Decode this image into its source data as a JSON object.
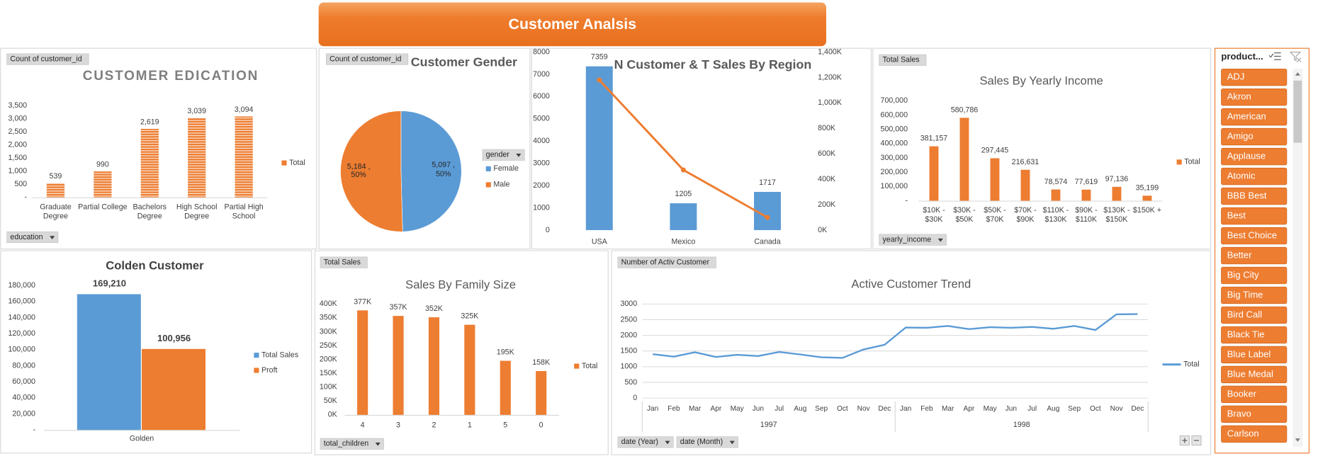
{
  "title": "Customer Analsis",
  "chart_data": [
    {
      "type": "bar",
      "title": "CUSTOMER EDICATION",
      "field_button": "Count of customer_id",
      "filter_button": "education",
      "pattern": "striped",
      "categories": [
        "Graduate Degree",
        "Partial College",
        "Bachelors Degree",
        "High School Degree",
        "Partial High School"
      ],
      "series": [
        {
          "name": "Total",
          "color": "#ed7d31",
          "values": [
            539,
            990,
            2619,
            3039,
            3094
          ],
          "value_labels": [
            "539",
            "990",
            "2,619",
            "3,039",
            "3,094"
          ]
        }
      ],
      "ylim": [
        0,
        3500
      ],
      "yticks": [
        {
          "value": 0,
          "label": "-"
        },
        500,
        {
          "value": 1000,
          "label": "1,000"
        },
        {
          "value": 1500,
          "label": "1,500"
        },
        {
          "value": 2000,
          "label": "2,000"
        },
        {
          "value": 2500,
          "label": "2,500"
        },
        {
          "value": 3000,
          "label": "3,000"
        },
        {
          "value": 3500,
          "label": "3,500"
        }
      ]
    },
    {
      "type": "pie",
      "title": "Customer Gender",
      "field_button": "Count of customer_id",
      "legend_title": "gender",
      "categories": [
        "Female",
        "Male"
      ],
      "values": [
        5097,
        5184
      ],
      "value_labels": [
        "5,097 , 50%",
        "5,184 , 50%"
      ],
      "colors": [
        "#5b9bd5",
        "#ed7d31"
      ]
    },
    {
      "type": "combo",
      "title": "N Customer & T Sales By Region",
      "categories": [
        "USA",
        "Mexico",
        "Canada"
      ],
      "series": [
        {
          "type": "bar",
          "color": "#5b9bd5",
          "values": [
            7359,
            1205,
            1717
          ]
        },
        {
          "type": "line",
          "axis": "y2",
          "color": "#ed7d31",
          "values": [
            1180000,
            473000,
            100000
          ]
        }
      ],
      "ylim": [
        0,
        8000
      ],
      "yticks": [
        0,
        1000,
        2000,
        3000,
        4000,
        5000,
        6000,
        7000,
        8000
      ],
      "y2lim": [
        0,
        1400000
      ],
      "y2ticks": [
        {
          "value": 0,
          "label": "0K"
        },
        {
          "value": 200000,
          "label": "200K"
        },
        {
          "value": 400000,
          "label": "400K"
        },
        {
          "value": 600000,
          "label": "600K"
        },
        {
          "value": 800000,
          "label": "800K"
        },
        {
          "value": 1000000,
          "label": "1,000K"
        },
        {
          "value": 1200000,
          "label": "1,200K"
        },
        {
          "value": 1400000,
          "label": "1,400K"
        }
      ]
    },
    {
      "type": "bar",
      "title": "Sales By Yearly Income",
      "field_button": "Total Sales",
      "filter_button": "yearly_income",
      "categories": [
        "$10K - $30K",
        "$30K - $50K",
        "$50K - $70K",
        "$70K - $90K",
        "$110K - $130K",
        "$90K - $110K",
        "$130K - $150K",
        "$150K +"
      ],
      "series": [
        {
          "name": "Total",
          "color": "#ed7d31",
          "values": [
            381157,
            580786,
            297445,
            216631,
            78574,
            77619,
            97136,
            35199
          ],
          "value_labels": [
            "381,157",
            "580,786",
            "297,445",
            "216,631",
            "78,574",
            "77,619",
            "97,136",
            "35,199"
          ]
        }
      ],
      "ylim": [
        0,
        700000
      ],
      "yticks": [
        {
          "value": 0,
          "label": "-"
        },
        {
          "value": 100000,
          "label": "100,000"
        },
        {
          "value": 200000,
          "label": "200,000"
        },
        {
          "value": 300000,
          "label": "300,000"
        },
        {
          "value": 400000,
          "label": "400,000"
        },
        {
          "value": 500000,
          "label": "500,000"
        },
        {
          "value": 600000,
          "label": "600,000"
        },
        {
          "value": 700000,
          "label": "700,000"
        }
      ]
    },
    {
      "type": "bar",
      "title": "Colden Customer",
      "categories": [
        "Golden"
      ],
      "series": [
        {
          "name": "Total  Sales",
          "color": "#5b9bd5",
          "values": [
            169210
          ],
          "value_labels": [
            "169,210"
          ]
        },
        {
          "name": "Proft",
          "color": "#ed7d31",
          "values": [
            100956
          ],
          "value_labels": [
            "100,956"
          ]
        }
      ],
      "ylim": [
        0,
        180000
      ],
      "yticks": [
        {
          "value": 0,
          "label": "-"
        },
        {
          "value": 20000,
          "label": "20,000"
        },
        {
          "value": 40000,
          "label": "40,000"
        },
        {
          "value": 60000,
          "label": "60,000"
        },
        {
          "value": 80000,
          "label": "80,000"
        },
        {
          "value": 100000,
          "label": "100,000"
        },
        {
          "value": 120000,
          "label": "120,000"
        },
        {
          "value": 140000,
          "label": "140,000"
        },
        {
          "value": 160000,
          "label": "160,000"
        },
        {
          "value": 180000,
          "label": "180,000"
        }
      ]
    },
    {
      "type": "bar",
      "title": "Sales By Family Size",
      "field_button": "Total Sales",
      "filter_button": "total_children",
      "categories": [
        "4",
        "3",
        "2",
        "1",
        "5",
        "0"
      ],
      "series": [
        {
          "name": "Total",
          "color": "#ed7d31",
          "values": [
            377000,
            357000,
            352000,
            325000,
            195000,
            158000
          ],
          "value_labels": [
            "377K",
            "357K",
            "352K",
            "325K",
            "195K",
            "158K"
          ]
        }
      ],
      "ylim": [
        0,
        400000
      ],
      "yticks": [
        {
          "value": 0,
          "label": "0K"
        },
        {
          "value": 50000,
          "label": "50K"
        },
        {
          "value": 100000,
          "label": "100K"
        },
        {
          "value": 150000,
          "label": "150K"
        },
        {
          "value": 200000,
          "label": "200K"
        },
        {
          "value": 250000,
          "label": "250K"
        },
        {
          "value": 300000,
          "label": "300K"
        },
        {
          "value": 350000,
          "label": "350K"
        },
        {
          "value": 400000,
          "label": "400K"
        }
      ]
    },
    {
      "type": "line",
      "title": "Active Customer Trend",
      "field_button": "Number of Activ Customer",
      "filter_buttons": [
        "date (Year)",
        "date (Month)"
      ],
      "grid": true,
      "categories": [
        "Jan",
        "Feb",
        "Mar",
        "Apr",
        "May",
        "Jun",
        "Jul",
        "Aug",
        "Sep",
        "Oct",
        "Nov",
        "Dec",
        "Jan",
        "Feb",
        "Mar",
        "Apr",
        "May",
        "Jun",
        "Jul",
        "Aug",
        "Sep",
        "Oct",
        "Nov",
        "Dec"
      ],
      "years": [
        "1997",
        "1998"
      ],
      "series": [
        {
          "name": "Total",
          "color": "#5b9bd5",
          "values": [
            1400,
            1320,
            1460,
            1310,
            1380,
            1340,
            1470,
            1390,
            1300,
            1280,
            1550,
            1700,
            2250,
            2240,
            2300,
            2200,
            2260,
            2240,
            2270,
            2210,
            2300,
            2170,
            2670,
            2680
          ]
        }
      ],
      "ylim": [
        0,
        3000
      ],
      "yticks": [
        0,
        500,
        1000,
        1500,
        2000,
        2500,
        3000
      ]
    }
  ],
  "slicer": {
    "title": "product...",
    "items": [
      "ADJ",
      "Akron",
      "American",
      "Amigo",
      "Applause",
      "Atomic",
      "BBB Best",
      "Best",
      "Best Choice",
      "Better",
      "Big City",
      "Big Time",
      "Bird Call",
      "Black Tie",
      "Blue Label",
      "Blue Medal",
      "Booker",
      "Bravo",
      "Carlson"
    ]
  }
}
